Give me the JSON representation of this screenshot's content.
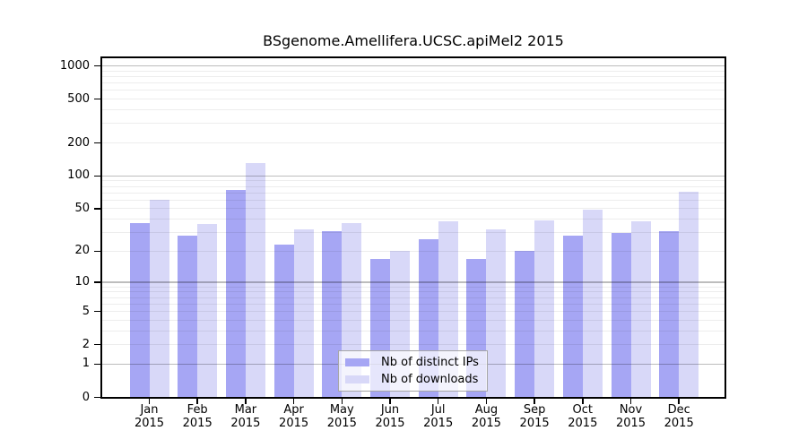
{
  "chart_data": {
    "type": "bar",
    "title": "BSgenome.Amellifera.UCSC.apiMel2 2015",
    "categories": [
      "Jan",
      "Feb",
      "Mar",
      "Apr",
      "May",
      "Jun",
      "Jul",
      "Aug",
      "Sep",
      "Oct",
      "Nov",
      "Dec"
    ],
    "year": "2015",
    "series": [
      {
        "name": "Nb of distinct IPs",
        "color": "#a6a6f4",
        "values": [
          37,
          28,
          75,
          23,
          31,
          17,
          26,
          17,
          20,
          28,
          30,
          31
        ]
      },
      {
        "name": "Nb of downloads",
        "color": "#d8d8f8",
        "values": [
          60,
          36,
          130,
          32,
          37,
          20,
          38,
          32,
          39,
          49,
          38,
          71
        ]
      }
    ],
    "yscale": "log10(1+x)",
    "yticks": [
      0,
      1,
      2,
      5,
      10,
      20,
      50,
      100,
      200,
      500,
      1000
    ],
    "ylim": [
      0,
      1000
    ],
    "grid": {
      "on": true,
      "minor_color": "#ececec",
      "major_color": "#bcbcbc",
      "major_at": [
        1,
        10,
        100,
        1000
      ]
    },
    "legend": {
      "position": "inside-bottom-center",
      "entries": [
        "Nb of distinct IPs",
        "Nb of downloads"
      ]
    }
  }
}
